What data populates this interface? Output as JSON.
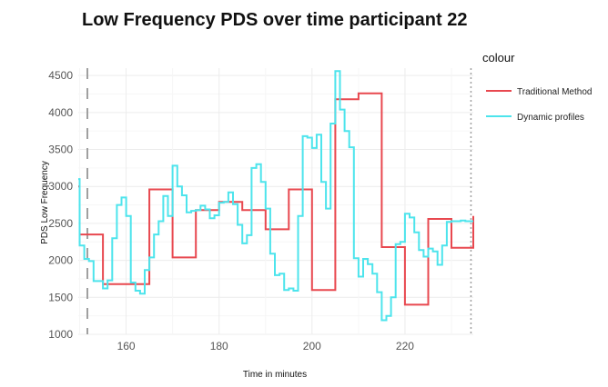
{
  "chart_data": {
    "type": "line",
    "title": "Low Frequency PDS over time participant 22",
    "xlabel": "Time in minutes",
    "ylabel": "PDS Low Frequency",
    "xlim": [
      149.7,
      234.7
    ],
    "ylim": [
      1000,
      4600
    ],
    "x_ticks": [
      160,
      180,
      200,
      220
    ],
    "y_ticks": [
      1000,
      1500,
      2000,
      2500,
      3000,
      3500,
      4000,
      4500
    ],
    "grid": true,
    "step": true,
    "vlines": [
      {
        "x": 149.7,
        "style": "long-dash",
        "color": "#a0a0a0"
      },
      {
        "x": 234.2,
        "style": "dotted",
        "color": "#a0a0a0"
      }
    ],
    "legend": {
      "title": "colour",
      "position": "right"
    },
    "series": [
      {
        "name": "Traditional Method",
        "color": "#e8484f",
        "x": [
          149.7,
          150.0,
          155.0,
          160.0,
          165.0,
          170.0,
          175.0,
          180.0,
          185.0,
          190.0,
          195.0,
          200.0,
          205.0,
          210.0,
          215.0,
          220.0,
          225.0,
          230.0,
          234.7
        ],
        "y": [
          3000,
          2350,
          1680,
          1680,
          2960,
          2040,
          2680,
          2790,
          2680,
          2420,
          2960,
          1600,
          4180,
          4260,
          2180,
          1400,
          2560,
          2170,
          2600
        ]
      },
      {
        "name": "Dynamic profiles",
        "color": "#4de4ec",
        "x": [
          149.7,
          150.0,
          151.0,
          152.0,
          153.0,
          154.0,
          155.0,
          156.0,
          157.0,
          158.0,
          159.0,
          160.0,
          161.0,
          162.0,
          163.0,
          164.0,
          165.0,
          166.0,
          167.0,
          168.0,
          169.0,
          170.0,
          171.0,
          172.0,
          173.0,
          174.0,
          175.0,
          176.0,
          177.0,
          178.0,
          179.0,
          180.0,
          181.0,
          182.0,
          183.0,
          184.0,
          185.0,
          186.0,
          187.0,
          188.0,
          189.0,
          190.0,
          191.0,
          192.0,
          193.0,
          194.0,
          195.0,
          196.0,
          197.0,
          198.0,
          199.0,
          200.0,
          201.0,
          202.0,
          203.0,
          204.0,
          205.0,
          206.0,
          207.0,
          208.0,
          209.0,
          210.0,
          211.0,
          212.0,
          213.0,
          214.0,
          215.0,
          216.0,
          217.0,
          218.0,
          219.0,
          220.0,
          221.0,
          222.0,
          223.0,
          224.0,
          225.0,
          226.0,
          227.0,
          228.0,
          229.0,
          230.0,
          231.0,
          232.0,
          233.0,
          234.0,
          234.7
        ],
        "y": [
          3100,
          2200,
          2020,
          1990,
          1720,
          1720,
          1620,
          1730,
          2300,
          2750,
          2850,
          2600,
          1700,
          1590,
          1550,
          1870,
          2040,
          2350,
          2530,
          2870,
          2600,
          3280,
          3000,
          2880,
          2650,
          2670,
          2680,
          2740,
          2690,
          2570,
          2610,
          2780,
          2790,
          2920,
          2760,
          2480,
          2230,
          2340,
          3250,
          3300,
          3060,
          2700,
          2090,
          1800,
          1820,
          1600,
          1620,
          1590,
          2600,
          3680,
          3660,
          3520,
          3700,
          3060,
          2700,
          3850,
          4560,
          4040,
          3750,
          3530,
          2030,
          1780,
          2020,
          1950,
          1820,
          1570,
          1190,
          1250,
          1500,
          2220,
          2250,
          2630,
          2580,
          2380,
          2140,
          2050,
          2160,
          2120,
          1940,
          2200,
          2520,
          2530,
          2530,
          2540,
          2530,
          2530,
          2530
        ]
      }
    ]
  }
}
